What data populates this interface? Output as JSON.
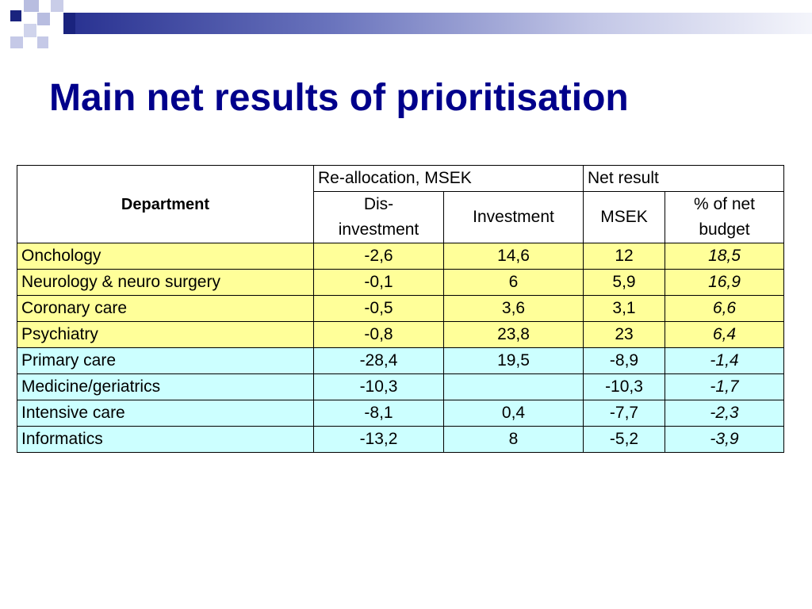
{
  "title": "Main net results of prioritisation",
  "table": {
    "headers": {
      "department": "Department",
      "reallocation_group": "Re-allocation, MSEK",
      "net_result_group": "Net result",
      "disinvestment_line1": "Dis-",
      "disinvestment_line2": "investment",
      "investment": "Investment",
      "msek": "MSEK",
      "pct_line1": "% of net",
      "pct_line2": "budget"
    },
    "rows": [
      {
        "department": "Onchology",
        "disinvestment": "-2,6",
        "investment": "14,6",
        "msek": "12",
        "pct": "18,5",
        "group": "yellow"
      },
      {
        "department": "Neurology & neuro surgery",
        "disinvestment": "-0,1",
        "investment": "6",
        "msek": "5,9",
        "pct": "16,9",
        "group": "yellow"
      },
      {
        "department": "Coronary care",
        "disinvestment": "-0,5",
        "investment": "3,6",
        "msek": "3,1",
        "pct": "6,6",
        "group": "yellow"
      },
      {
        "department": "Psychiatry",
        "disinvestment": "-0,8",
        "investment": "23,8",
        "msek": "23",
        "pct": "6,4",
        "group": "yellow"
      },
      {
        "department": "Primary care",
        "disinvestment": "-28,4",
        "investment": "19,5",
        "msek": "-8,9",
        "pct": "-1,4",
        "group": "cyan"
      },
      {
        "department": "Medicine/geriatrics",
        "disinvestment": "-10,3",
        "investment": "",
        "msek": "-10,3",
        "pct": "-1,7",
        "group": "cyan"
      },
      {
        "department": "Intensive care",
        "disinvestment": "-8,1",
        "investment": "0,4",
        "msek": "-7,7",
        "pct": "-2,3",
        "group": "cyan"
      },
      {
        "department": "Informatics",
        "disinvestment": "-13,2",
        "investment": "8",
        "msek": "-5,2",
        "pct": "-3,9",
        "group": "cyan"
      }
    ]
  },
  "colors": {
    "title": "#00008b",
    "positive_rows": "#ffff99",
    "negative_rows": "#ccffff"
  }
}
